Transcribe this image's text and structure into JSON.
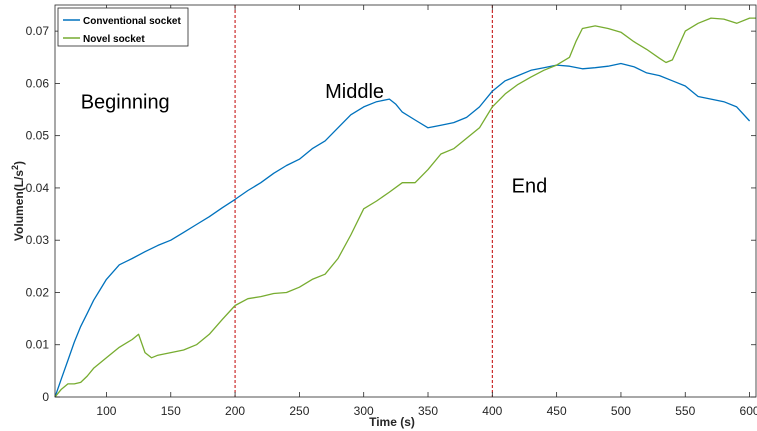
{
  "chart_data": {
    "type": "line",
    "title": "",
    "xlabel": "Time (s)",
    "ylabel": "Volumen(L/s",
    "ylabel_sup": "2",
    "ylabel_suffix": ")",
    "xlim": [
      60,
      605
    ],
    "ylim": [
      0,
      0.075
    ],
    "x_ticks": [
      100,
      150,
      200,
      250,
      300,
      350,
      400,
      450,
      500,
      550,
      600
    ],
    "y_ticks": [
      0,
      0.01,
      0.02,
      0.03,
      0.04,
      0.05,
      0.06,
      0.07
    ],
    "x_tick_labels": [
      "100",
      "150",
      "200",
      "250",
      "300",
      "350",
      "400",
      "450",
      "500",
      "550",
      "600"
    ],
    "y_tick_labels": [
      "0",
      "0.01",
      "0.02",
      "0.03",
      "0.04",
      "0.05",
      "0.06",
      "0.07"
    ],
    "grid": false,
    "legend_position": "top-left",
    "vlines": [
      200,
      400
    ],
    "vline_color": "#c00000",
    "annotations": [
      {
        "text": "Beginning",
        "x": 80,
        "y": 0.0565
      },
      {
        "text": "Middle",
        "x": 270,
        "y": 0.0585
      },
      {
        "text": "End",
        "x": 415,
        "y": 0.0405
      }
    ],
    "series": [
      {
        "name": "Conventional socket",
        "color": "#0072bd",
        "x": [
          60,
          65,
          70,
          75,
          80,
          85,
          90,
          95,
          100,
          110,
          120,
          130,
          140,
          150,
          160,
          170,
          180,
          190,
          200,
          210,
          220,
          230,
          240,
          250,
          260,
          270,
          280,
          290,
          300,
          310,
          320,
          325,
          330,
          340,
          350,
          360,
          370,
          380,
          390,
          400,
          410,
          420,
          430,
          440,
          450,
          460,
          470,
          480,
          490,
          500,
          510,
          520,
          530,
          540,
          550,
          560,
          570,
          580,
          590,
          600
        ],
        "y": [
          0.0,
          0.0035,
          0.007,
          0.0105,
          0.0135,
          0.016,
          0.0185,
          0.0205,
          0.0225,
          0.0253,
          0.0265,
          0.0278,
          0.029,
          0.03,
          0.0315,
          0.033,
          0.0345,
          0.0362,
          0.0378,
          0.0395,
          0.041,
          0.0428,
          0.0443,
          0.0455,
          0.0475,
          0.049,
          0.0515,
          0.054,
          0.0555,
          0.0565,
          0.057,
          0.056,
          0.0545,
          0.053,
          0.0515,
          0.052,
          0.0525,
          0.0535,
          0.0555,
          0.0585,
          0.0605,
          0.0615,
          0.0625,
          0.063,
          0.0635,
          0.0633,
          0.0628,
          0.063,
          0.0633,
          0.0638,
          0.0632,
          0.062,
          0.0615,
          0.0605,
          0.0595,
          0.0575,
          0.057,
          0.0565,
          0.0555,
          0.0528
        ]
      },
      {
        "name": "Novel socket",
        "color": "#77ac30",
        "x": [
          60,
          65,
          70,
          75,
          80,
          85,
          90,
          100,
          110,
          120,
          125,
          130,
          135,
          140,
          150,
          160,
          170,
          180,
          190,
          200,
          210,
          220,
          230,
          240,
          250,
          260,
          270,
          280,
          290,
          300,
          310,
          320,
          330,
          340,
          350,
          360,
          370,
          380,
          390,
          400,
          410,
          420,
          430,
          440,
          450,
          460,
          465,
          470,
          480,
          490,
          500,
          510,
          520,
          530,
          535,
          540,
          550,
          560,
          570,
          580,
          590,
          600,
          605
        ],
        "y": [
          0.0,
          0.0015,
          0.0025,
          0.0025,
          0.0028,
          0.004,
          0.0055,
          0.0075,
          0.0095,
          0.011,
          0.012,
          0.0085,
          0.0075,
          0.008,
          0.0085,
          0.009,
          0.01,
          0.012,
          0.0148,
          0.0175,
          0.0188,
          0.0192,
          0.0198,
          0.02,
          0.021,
          0.0225,
          0.0235,
          0.0265,
          0.031,
          0.036,
          0.0375,
          0.0392,
          0.041,
          0.041,
          0.0435,
          0.0465,
          0.0475,
          0.0495,
          0.0515,
          0.0555,
          0.058,
          0.0598,
          0.0612,
          0.0625,
          0.0635,
          0.065,
          0.068,
          0.0705,
          0.071,
          0.0705,
          0.0698,
          0.068,
          0.0665,
          0.0648,
          0.064,
          0.0645,
          0.07,
          0.0715,
          0.0725,
          0.0723,
          0.0715,
          0.0725,
          0.0725
        ]
      }
    ]
  }
}
